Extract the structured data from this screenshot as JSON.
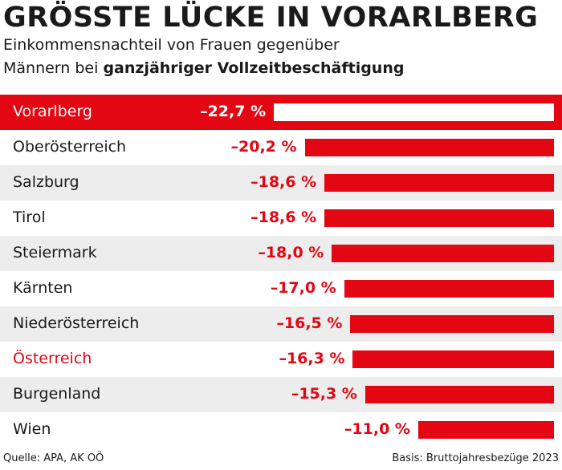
{
  "title": "GRÖSSTE LÜCKE IN VORARLBERG",
  "subtitle_line1": "Einkommensnachteil von Frauen gegenüber",
  "subtitle_line2_plain": "Männern bei ",
  "subtitle_line2_bold": "ganzjähriger Vollzeitbeschäftigung",
  "source": "Quelle: APA, AK OÖ",
  "basis": "Basis: Bruttojahresbezüge 2023",
  "colors": {
    "accent": "#e30613",
    "row_alt": "#eeeded"
  },
  "chart_data": {
    "type": "bar",
    "orientation": "horizontal",
    "categories": [
      "Vorarlberg",
      "Oberösterreich",
      "Salzburg",
      "Tirol",
      "Steiermark",
      "Kärnten",
      "Niederösterreich",
      "Österreich",
      "Burgenland",
      "Wien"
    ],
    "values": [
      -22.7,
      -20.2,
      -18.6,
      -18.6,
      -18.0,
      -17.0,
      -16.5,
      -16.3,
      -15.3,
      -11.0
    ],
    "labels": [
      "–22,7 %",
      "–20,2 %",
      "–18,6 %",
      "–18,6 %",
      "–18,0 %",
      "–17,0 %",
      "–16,5 %",
      "–16,3 %",
      "–15,3 %",
      "–11,0 %"
    ],
    "highlighted": "Vorarlberg",
    "total_category": "Österreich",
    "grid": false
  }
}
